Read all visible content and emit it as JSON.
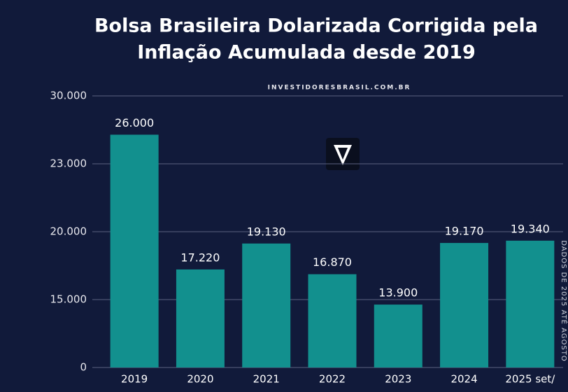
{
  "chart_data": {
    "type": "bar",
    "title_lines": [
      "Bolsa Brasileira Dolarizada Corrigida pela",
      "Inflação Acumulada desde 2019"
    ],
    "subtitle": "INVESTIDORESBRASIL.COM.BR",
    "annotation": "DADOS DE 2025 ATÉ AGOSTO",
    "categories": [
      "2019",
      "2020",
      "2021",
      "2022",
      "2023",
      "2024",
      "2025 set/"
    ],
    "values": [
      26000,
      17220,
      19130,
      16870,
      13900,
      19170,
      19340
    ],
    "value_labels": [
      "26.000",
      "17.220",
      "19.130",
      "16.870",
      "13.900",
      "19.170",
      "19.340"
    ],
    "color": "#12908e",
    "ylim": [
      0,
      30000
    ],
    "yticks": [
      0,
      {
        "value": 15000,
        "label": "15.000"
      },
      {
        "value": 20000,
        "label": "20.000"
      },
      {
        "value": 23000,
        "label": "23.000"
      },
      {
        "value": 30000,
        "label": "30.000"
      }
    ],
    "grid": true
  }
}
